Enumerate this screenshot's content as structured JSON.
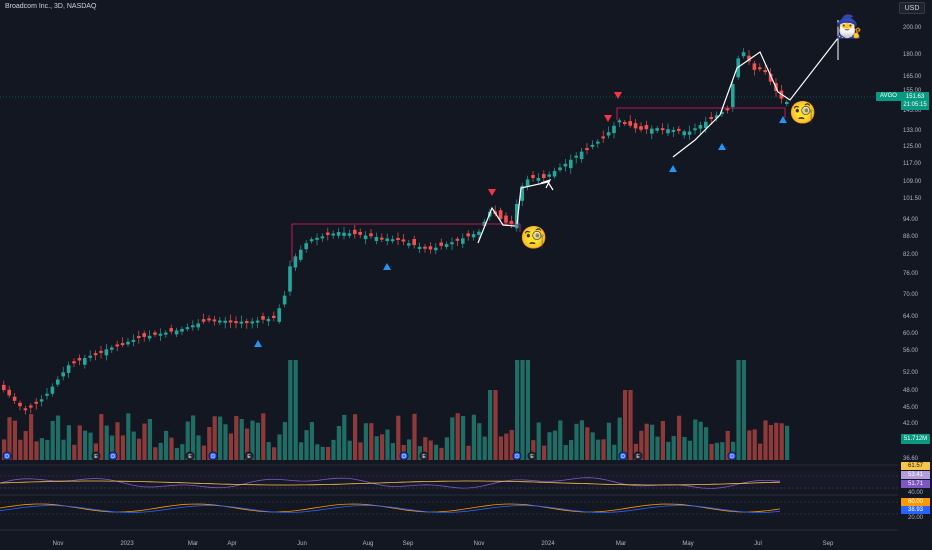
{
  "header": {
    "symbol_title": "Broadcom Inc., 3D, NASDAQ",
    "currency": "USD"
  },
  "price_axis": {
    "labels": [
      "200.00",
      "180.00",
      "165.00",
      "155.00",
      "143.00",
      "133.00",
      "125.00",
      "117.00",
      "109.00",
      "101.50",
      "94.00",
      "88.00",
      "82.00",
      "76.00",
      "70.00",
      "64.00",
      "60.00",
      "56.00",
      "52.00",
      "48.00",
      "45.00",
      "42.00",
      "39.00",
      "36.60"
    ],
    "ticker_tag": "AVGO",
    "last_price": "151.63",
    "countdown": "21:05:15",
    "volume_tag": "51.712M"
  },
  "rsi_axis": {
    "values": [
      "61.57",
      "53.41",
      "51.71",
      "40.00"
    ],
    "colors": [
      "#f7c548",
      "#b39ddb",
      "#7e57c2",
      "#434651"
    ]
  },
  "stoch_axis": {
    "values": [
      "60.00",
      "38.93",
      "20.00"
    ],
    "colors": [
      "#ff9800",
      "#2962ff",
      "#434651"
    ]
  },
  "time_axis": {
    "labels": [
      "Nov",
      "2023",
      "Mar",
      "Apr",
      "Jun",
      "Aug",
      "Sep",
      "Nov",
      "2024",
      "Mar",
      "May",
      "Jul",
      "Sep"
    ]
  },
  "event_markers": [
    "D",
    "E",
    "D",
    "E",
    "D",
    "E",
    "D",
    "E",
    "D",
    "E",
    "D",
    "E",
    "D"
  ],
  "colors": {
    "background": "#131722",
    "up": "#26a69a",
    "down": "#ef5350",
    "volume_up": "#1f6d65",
    "volume_down": "#8e3a3a",
    "resistance": "#e91e63",
    "signal_up": "#2196f3",
    "signal_down": "#f23645",
    "drawing": "#ffffff"
  },
  "icons": [
    "magnifier-face-emoji",
    "wizard-emoji",
    "triangle-up-icon",
    "triangle-down-icon"
  ],
  "emojis": {
    "magnifier": "🧐",
    "wizard": "🧙‍♂️"
  }
}
